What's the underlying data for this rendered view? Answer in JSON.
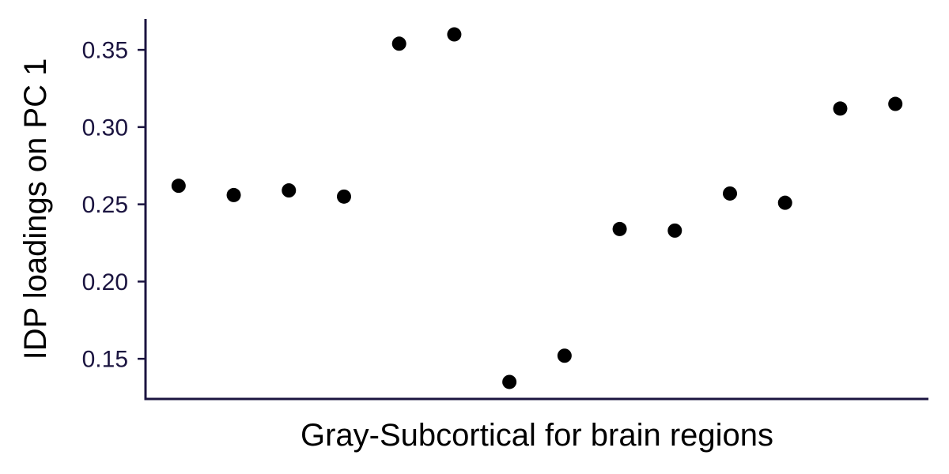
{
  "chart_data": {
    "type": "scatter",
    "title": "",
    "xlabel": "Gray-Subcortical for brain regions",
    "ylabel": "IDP loadings on PC 1",
    "x": [
      1,
      2,
      3,
      4,
      5,
      6,
      7,
      8,
      9,
      10,
      11,
      12,
      13,
      14
    ],
    "y": [
      0.262,
      0.256,
      0.259,
      0.255,
      0.354,
      0.36,
      0.135,
      0.152,
      0.234,
      0.233,
      0.257,
      0.251,
      0.312,
      0.315
    ],
    "xlim": [
      0.4,
      14.6
    ],
    "ylim": [
      0.124,
      0.37
    ],
    "yticks": [
      0.15,
      0.2,
      0.25,
      0.3,
      0.35
    ],
    "ytick_labels": [
      "0.15",
      "0.20",
      "0.25",
      "0.30",
      "0.35"
    ],
    "grid": false,
    "legend": "none",
    "colors": {
      "point": "#000000",
      "axis": "#1b1440",
      "tick_label": "#1b1440"
    }
  }
}
